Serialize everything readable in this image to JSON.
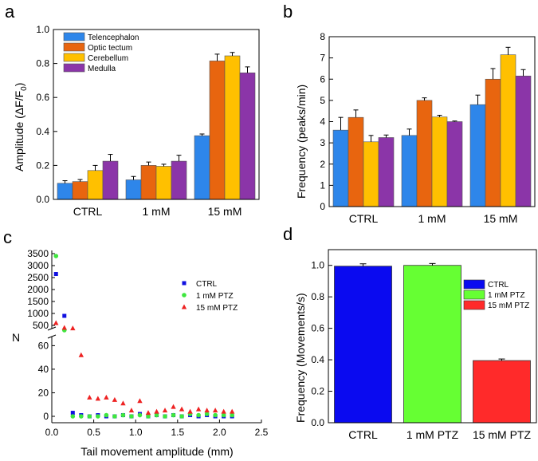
{
  "chart_data": [
    {
      "panel": "a",
      "type": "bar",
      "ylabel": "Amplitude (ΔF/F0)",
      "ylabel_main": "Amplitude (ΔF/F",
      "ylabel_sub": "0",
      "ylabel_close": ")",
      "ylim": [
        0,
        1.0
      ],
      "yticks": [
        "0.0",
        "0.2",
        "0.4",
        "0.6",
        "0.8",
        "1.0"
      ],
      "categories": [
        "CTRL",
        "1 mM",
        "15 mM"
      ],
      "series": [
        {
          "name": "Telencephalon",
          "color": "#2e86ea",
          "values": [
            0.095,
            0.115,
            0.375
          ],
          "errors": [
            0.015,
            0.02,
            0.01
          ]
        },
        {
          "name": "Optic tectum",
          "color": "#e8650f",
          "values": [
            0.105,
            0.2,
            0.815
          ],
          "errors": [
            0.012,
            0.02,
            0.04
          ]
        },
        {
          "name": "Cerebellum",
          "color": "#ffc000",
          "values": [
            0.17,
            0.195,
            0.845
          ],
          "errors": [
            0.03,
            0.012,
            0.02
          ]
        },
        {
          "name": "Medulla",
          "color": "#8b35a8",
          "values": [
            0.225,
            0.225,
            0.745
          ],
          "errors": [
            0.04,
            0.035,
            0.035
          ]
        }
      ]
    },
    {
      "panel": "b",
      "type": "bar",
      "ylabel": "Frequency (peaks/min)",
      "ylim": [
        0,
        8
      ],
      "yticks": [
        "0",
        "1",
        "2",
        "3",
        "4",
        "5",
        "6",
        "7",
        "8"
      ],
      "categories": [
        "CTRL",
        "1 mM",
        "15 mM"
      ],
      "series": [
        {
          "name": "Telencephalon",
          "color": "#2e86ea",
          "values": [
            3.6,
            3.35,
            4.8
          ],
          "errors": [
            0.6,
            0.3,
            0.45
          ]
        },
        {
          "name": "Optic tectum",
          "color": "#e8650f",
          "values": [
            4.2,
            5.0,
            6.0
          ],
          "errors": [
            0.35,
            0.12,
            0.5
          ]
        },
        {
          "name": "Cerebellum",
          "color": "#ffc000",
          "values": [
            3.05,
            4.22,
            7.15
          ],
          "errors": [
            0.3,
            0.08,
            0.35
          ]
        },
        {
          "name": "Medulla",
          "color": "#8b35a8",
          "values": [
            3.25,
            4.0,
            6.15
          ],
          "errors": [
            0.12,
            0.03,
            0.3
          ]
        }
      ]
    },
    {
      "panel": "c",
      "type": "scatter",
      "xlabel": "Tail movement amplitude (mm)",
      "ylabel": "N",
      "xlim": [
        0,
        2.5
      ],
      "xticks": [
        "0.0",
        "0.5",
        "1.0",
        "1.5",
        "2.0",
        "2.5"
      ],
      "ylim_lower": [
        0,
        65
      ],
      "ylim_upper": [
        500,
        3500
      ],
      "yticks_lower": [
        "0",
        "20",
        "40",
        "60"
      ],
      "yticks_upper": [
        "500",
        "1000",
        "1500",
        "2000",
        "2500",
        "3000",
        "3500"
      ],
      "series": [
        {
          "name": "CTRL",
          "color": "#1010e0",
          "marker": "square",
          "x": [
            0.05,
            0.15,
            0.25,
            0.35,
            0.45,
            0.55,
            0.65,
            0.75,
            0.85,
            0.95,
            1.05,
            1.15,
            1.25,
            1.35,
            1.45,
            1.55,
            1.65,
            1.75,
            1.85,
            1.95,
            2.05,
            2.15
          ],
          "y": [
            2650,
            900,
            3,
            1,
            0,
            1,
            0,
            0,
            1,
            0,
            2,
            0,
            1,
            0,
            1,
            0,
            1,
            0,
            1,
            0,
            0,
            0
          ]
        },
        {
          "name": "1 mM PTZ",
          "color": "#3ee63e",
          "marker": "circle",
          "x": [
            0.05,
            0.15,
            0.25,
            0.35,
            0.45,
            0.55,
            0.65,
            0.75,
            0.85,
            0.95,
            1.05,
            1.15,
            1.25,
            1.35,
            1.45,
            1.55,
            1.65,
            1.75,
            1.85,
            1.95,
            2.05,
            2.15
          ],
          "y": [
            3400,
            300,
            0,
            0,
            0,
            0,
            1,
            0,
            1,
            0,
            1,
            0,
            1,
            0,
            1,
            0,
            2,
            1,
            2,
            1,
            1,
            1
          ]
        },
        {
          "name": "15 mM PTZ",
          "color": "#ee2222",
          "marker": "triangle",
          "x": [
            0.05,
            0.15,
            0.25,
            0.35,
            0.45,
            0.55,
            0.65,
            0.75,
            0.85,
            0.95,
            1.05,
            1.15,
            1.25,
            1.35,
            1.45,
            1.55,
            1.65,
            1.75,
            1.85,
            1.95,
            2.05,
            2.15
          ],
          "y": [
            600,
            400,
            380,
            52,
            16,
            15,
            16,
            14,
            11,
            5,
            13,
            3,
            4,
            5,
            8,
            6,
            4,
            6,
            5,
            5,
            4,
            4
          ]
        }
      ]
    },
    {
      "panel": "d",
      "type": "bar",
      "ylabel": "Frequency (Movements/s)",
      "ylim": [
        0,
        1.1
      ],
      "yticks": [
        "0.0",
        "0.2",
        "0.4",
        "0.6",
        "0.8",
        "1.0"
      ],
      "categories": [
        "CTRL",
        "1 mM PTZ",
        "15 mM PTZ"
      ],
      "values": [
        0.995,
        1.0,
        0.395
      ],
      "errors": [
        0.015,
        0.012,
        0.01
      ],
      "colors": [
        "#0a0af0",
        "#66ff33",
        "#ff2a2a"
      ],
      "legend": [
        "CTRL",
        "1 mM PTZ",
        "15 mM PTZ"
      ]
    }
  ]
}
